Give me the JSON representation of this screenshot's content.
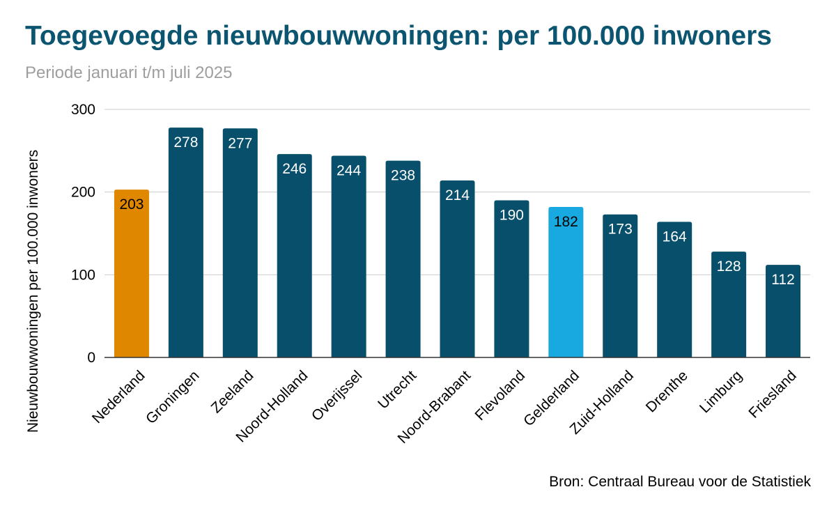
{
  "chart_data": {
    "type": "bar",
    "title": "Toegevoegde nieuwbouwwoningen: per 100.000 inwoners",
    "subtitle": "Periode januari t/m juli 2025",
    "ylabel": "Nieuwbouwwoningen per 100.000 inwoners",
    "source": "Bron: Centraal Bureau voor de Statistiek",
    "ylim": [
      0,
      300
    ],
    "yticks": [
      0,
      100,
      200,
      300
    ],
    "grid": true,
    "categories": [
      "Nederland",
      "Groningen",
      "Zeeland",
      "Noord-Holland",
      "Overijssel",
      "Utrecht",
      "Noord-Brabant",
      "Flevoland",
      "Gelderland",
      "Zuid-Holland",
      "Drenthe",
      "Limburg",
      "Friesland"
    ],
    "values": [
      203,
      278,
      277,
      246,
      244,
      238,
      214,
      190,
      182,
      173,
      164,
      128,
      112
    ],
    "colors": [
      "#e08700",
      "#074f6a",
      "#074f6a",
      "#074f6a",
      "#074f6a",
      "#074f6a",
      "#074f6a",
      "#074f6a",
      "#18a9e0",
      "#074f6a",
      "#074f6a",
      "#074f6a",
      "#074f6a"
    ],
    "label_colors": [
      "#000000",
      "#ffffff",
      "#ffffff",
      "#ffffff",
      "#ffffff",
      "#ffffff",
      "#ffffff",
      "#ffffff",
      "#000000",
      "#ffffff",
      "#ffffff",
      "#ffffff",
      "#ffffff"
    ]
  }
}
